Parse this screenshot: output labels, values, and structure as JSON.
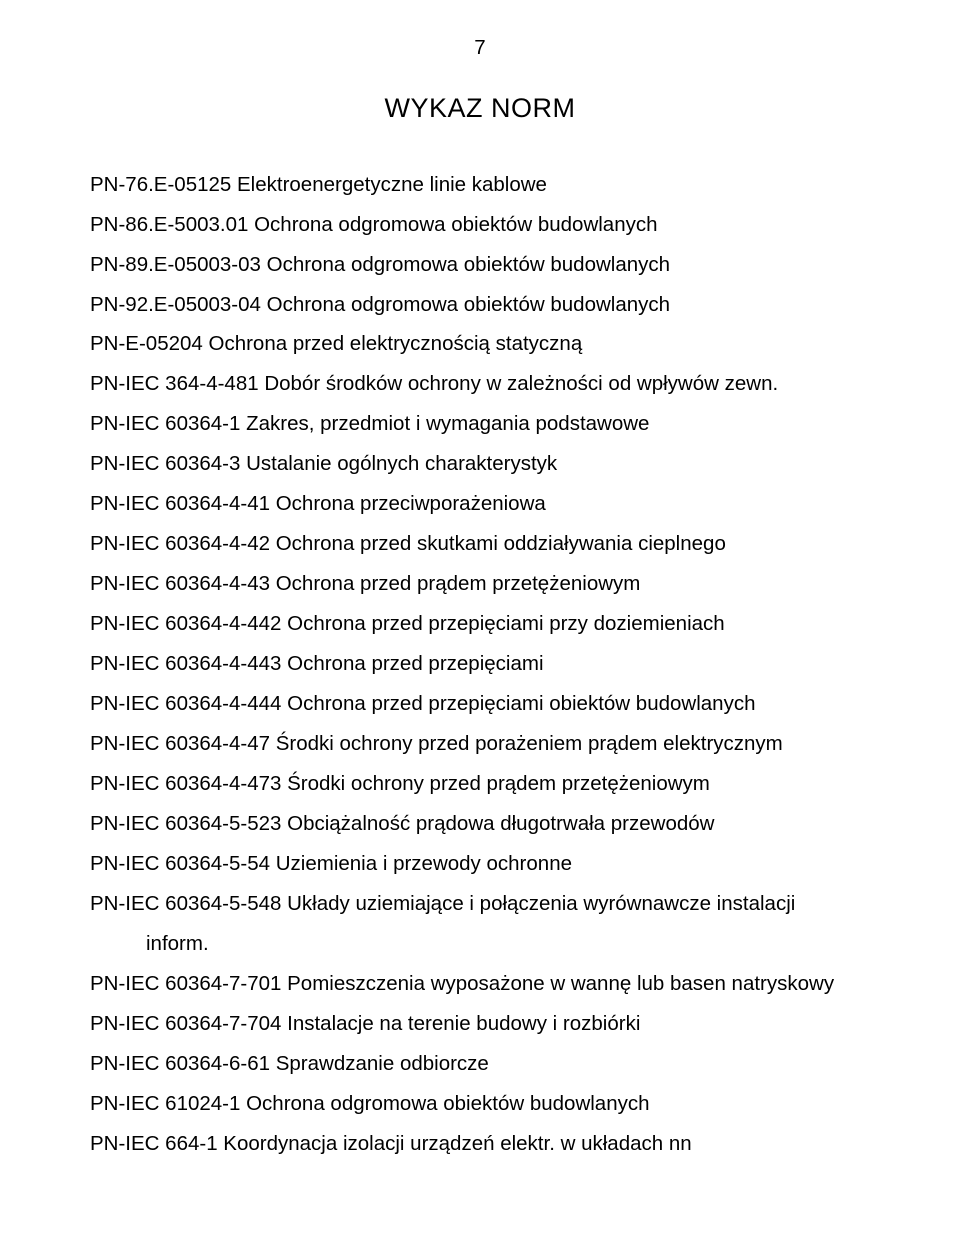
{
  "page_number": "7",
  "title": "WYKAZ NORM",
  "entries": [
    {
      "text": "PN-76.E-05125 Elektroenergetyczne linie kablowe",
      "justify": false
    },
    {
      "text": "PN-86.E-5003.01 Ochrona odgromowa obiektów budowlanych",
      "justify": false
    },
    {
      "text": "PN-89.E-05003-03 Ochrona odgromowa obiektów budowlanych",
      "justify": false
    },
    {
      "text": "PN-92.E-05003-04  Ochrona odgromowa obiektów budowlanych",
      "justify": false
    },
    {
      "text": "PN-E-05204  Ochrona przed elektrycznością statyczną",
      "justify": false
    },
    {
      "text": "PN-IEC 364-4-481  Dobór środków ochrony w zależności od wpływów zewn.",
      "justify": false
    },
    {
      "text": "PN-IEC 60364-1 Zakres, przedmiot i wymagania podstawowe",
      "justify": false
    },
    {
      "text": "PN-IEC 60364-3 Ustalanie ogólnych charakterystyk",
      "justify": false
    },
    {
      "text": "PN-IEC 60364-4-41 Ochrona przeciwporażeniowa",
      "justify": false
    },
    {
      "text": "PN-IEC 60364-4-42 Ochrona przed skutkami oddziaływania cieplnego",
      "justify": false
    },
    {
      "text": "PN-IEC 60364-4-43  Ochrona przed prądem przetężeniowym",
      "justify": false
    },
    {
      "text": "PN-IEC 60364-4-442  Ochrona przed przepięciami przy doziemieniach",
      "justify": false
    },
    {
      "text": "PN-IEC 60364-4-443  Ochrona przed przepięciami",
      "justify": false
    },
    {
      "text": "PN-IEC 60364-4-444  Ochrona przed przepięciami obiektów budowlanych",
      "justify": false
    },
    {
      "text": "PN-IEC 60364-4-47  Środki ochrony przed porażeniem prądem elektrycznym",
      "justify": false
    },
    {
      "text": "PN-IEC 60364-4-473  Środki ochrony przed prądem przetężeniowym",
      "justify": false
    },
    {
      "text": "PN-IEC 60364-5-523 Obciążalność prądowa długotrwała przewodów",
      "justify": false
    },
    {
      "text": "PN-IEC 60364-5-54  Uziemienia i przewody ochronne",
      "justify": false
    },
    {
      "text": "PN-IEC  60364-5-548    Układy  uziemiające  i  połączenia  wyrównawcze  instalacji",
      "justify": true
    },
    {
      "text": "inform.",
      "justify": false,
      "indent": true
    },
    {
      "text": "PN-IEC 60364-7-701  Pomieszczenia wyposażone w wannę lub basen natryskowy",
      "justify": false
    },
    {
      "text": "PN-IEC 60364-7-704  Instalacje na terenie budowy i rozbiórki",
      "justify": false
    },
    {
      "text": "PN-IEC 60364-6-61  Sprawdzanie odbiorcze",
      "justify": false
    },
    {
      "text": "PN-IEC 61024-1  Ochrona odgromowa obiektów budowlanych",
      "justify": false
    },
    {
      "text": "PN-IEC 664-1  Koordynacja izolacji urządzeń elektr. w układach nn",
      "justify": false
    }
  ]
}
